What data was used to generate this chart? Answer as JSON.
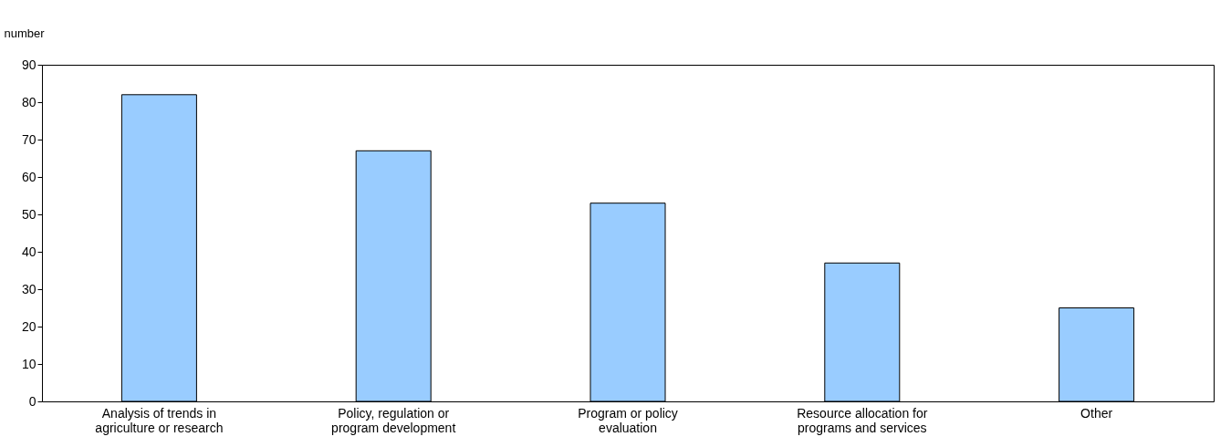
{
  "chart_data": {
    "type": "bar",
    "ylabel": "number",
    "categories": [
      "Analysis of trends in agriculture or research",
      "Policy, regulation or program development",
      "Program or policy evaluation",
      "Resource allocation for programs and services",
      "Other"
    ],
    "values": [
      82,
      67,
      53,
      37,
      25
    ],
    "color": "#99ccff",
    "ylim": [
      0,
      90
    ],
    "yticks": [
      0,
      10,
      20,
      30,
      40,
      50,
      60,
      70,
      80,
      90
    ],
    "grid": false
  }
}
